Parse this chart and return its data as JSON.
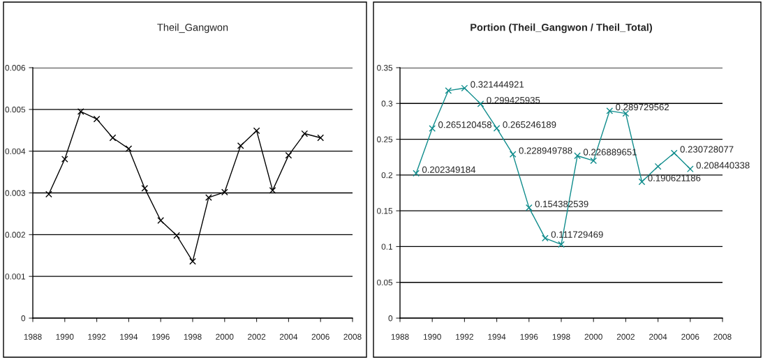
{
  "chart_data": [
    {
      "type": "line",
      "title": "Theil_Gangwon",
      "x": [
        1989,
        1990,
        1991,
        1992,
        1993,
        1994,
        1995,
        1996,
        1997,
        1998,
        1999,
        2000,
        2001,
        2002,
        2003,
        2004,
        2005,
        2006
      ],
      "series": [
        {
          "color": "#000000",
          "values": [
            0.00297,
            0.00381,
            0.00495,
            0.00477,
            0.00432,
            0.00406,
            0.00311,
            0.00234,
            0.00198,
            0.00136,
            0.00289,
            0.00302,
            0.00413,
            0.00449,
            0.00306,
            0.0039,
            0.00442,
            0.00432
          ]
        }
      ],
      "xlim": [
        1988,
        2008
      ],
      "xticks": [
        1988,
        1990,
        1992,
        1994,
        1996,
        1998,
        2000,
        2002,
        2004,
        2006,
        2008
      ],
      "ylim": [
        0,
        0.006
      ],
      "yticks": [
        0,
        0.001,
        0.002,
        0.003,
        0.004,
        0.005,
        0.006
      ],
      "grid": "y",
      "marker": "cross"
    },
    {
      "type": "line",
      "title": "Portion (Theil_Gangwon / Theil_Total)",
      "x": [
        1989,
        1990,
        1991,
        1992,
        1993,
        1994,
        1995,
        1996,
        1997,
        1998,
        1999,
        2000,
        2001,
        2002,
        2003,
        2004,
        2005,
        2006
      ],
      "series": [
        {
          "color": "#0f8c8c",
          "values": [
            0.202349184,
            0.265120458,
            0.318,
            0.321444921,
            0.299425935,
            0.265246189,
            0.228949788,
            0.154382539,
            0.111729469,
            0.103,
            0.226889651,
            0.22,
            0.289729562,
            0.286,
            0.190621186,
            0.212,
            0.230728077,
            0.208440338
          ],
          "value_labels": [
            "0.202349184",
            "0.265120458",
            null,
            "0.321444921",
            "0.299425935",
            "0.265246189",
            "0.228949788",
            "0.154382539",
            "0.111729469",
            null,
            "0.226889651",
            null,
            "0.289729562",
            null,
            "0.190621186",
            null,
            "0.230728077",
            "0.208440338"
          ]
        }
      ],
      "xlim": [
        1988,
        2008
      ],
      "xticks": [
        1988,
        1990,
        1992,
        1994,
        1996,
        1998,
        2000,
        2002,
        2004,
        2006,
        2008
      ],
      "ylim": [
        0,
        0.35
      ],
      "yticks": [
        0,
        0.05,
        0.1,
        0.15,
        0.2,
        0.25,
        0.3,
        0.35
      ],
      "grid": "y",
      "marker": "cross"
    }
  ]
}
